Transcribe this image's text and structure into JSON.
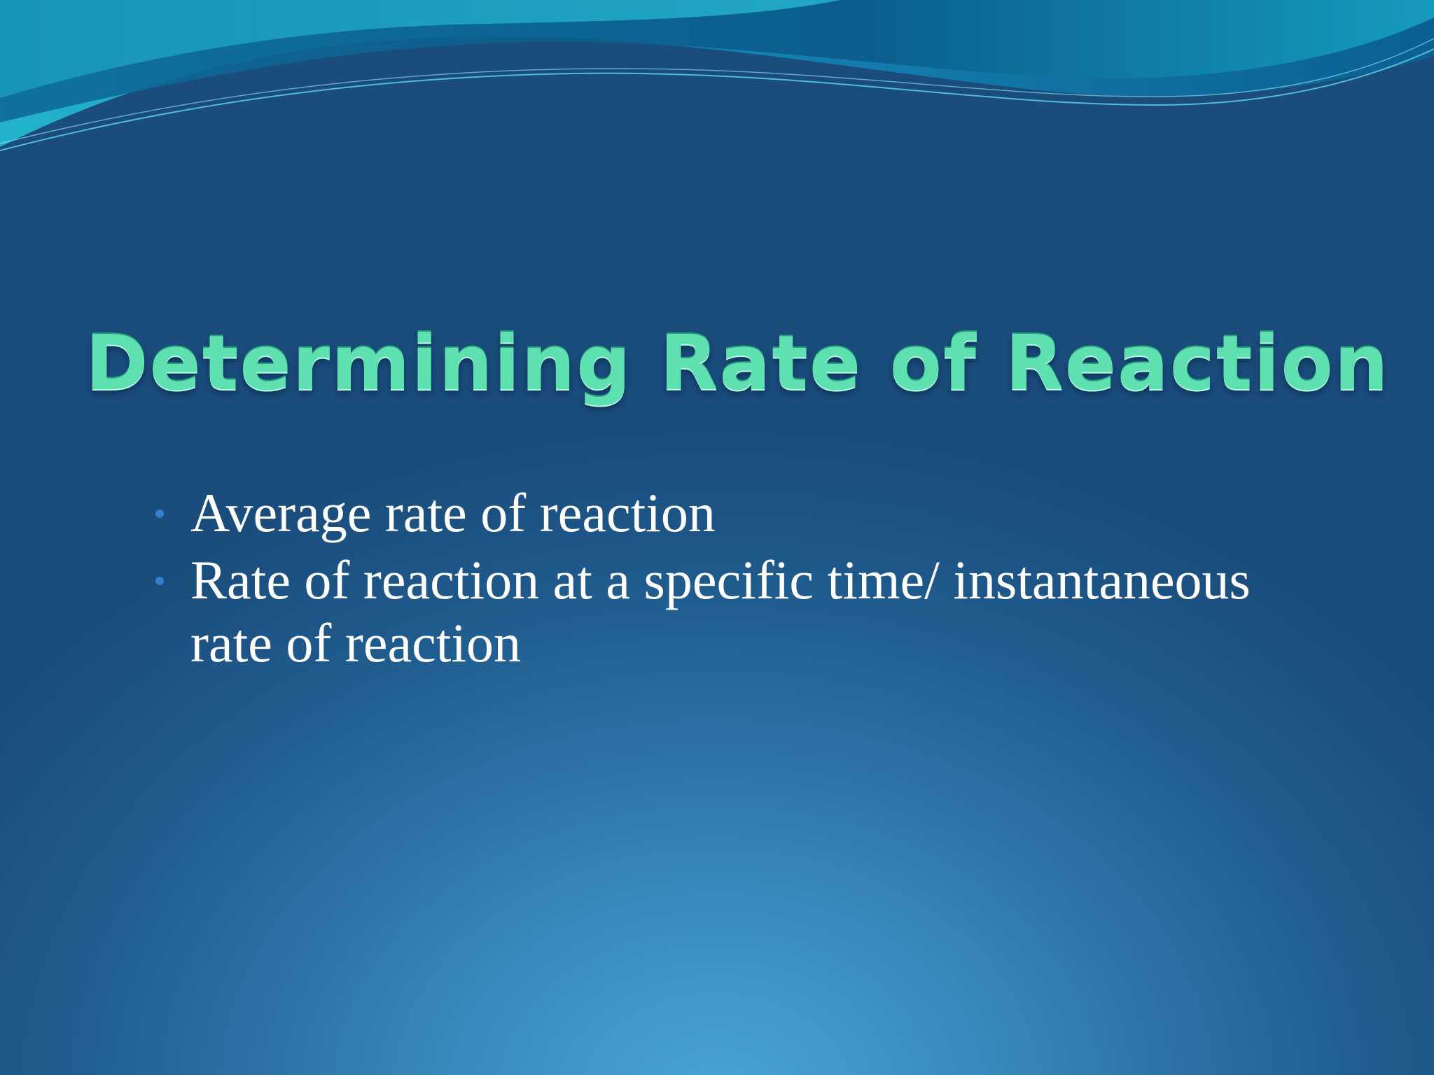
{
  "slide": {
    "title": "Determining Rate of Reaction",
    "bullets": [
      {
        "text": "Average rate of reaction"
      },
      {
        "text": "Rate of reaction at a specific time/ instantaneous rate of reaction"
      }
    ]
  },
  "theme": {
    "title_color": "#5fe0b0",
    "body_text_color": "#ffffff",
    "bullet_color": "#2f7fd0",
    "background_top": "#1a4d7c",
    "background_glow": "#4aa3d6",
    "wave_colors": [
      "#1fa7c4",
      "#0f6c9a",
      "#2cc6d8"
    ]
  },
  "decorations": {
    "top_wave_icon": "wave-banner-icon",
    "bullet_icon": "bullet-dot-icon"
  }
}
